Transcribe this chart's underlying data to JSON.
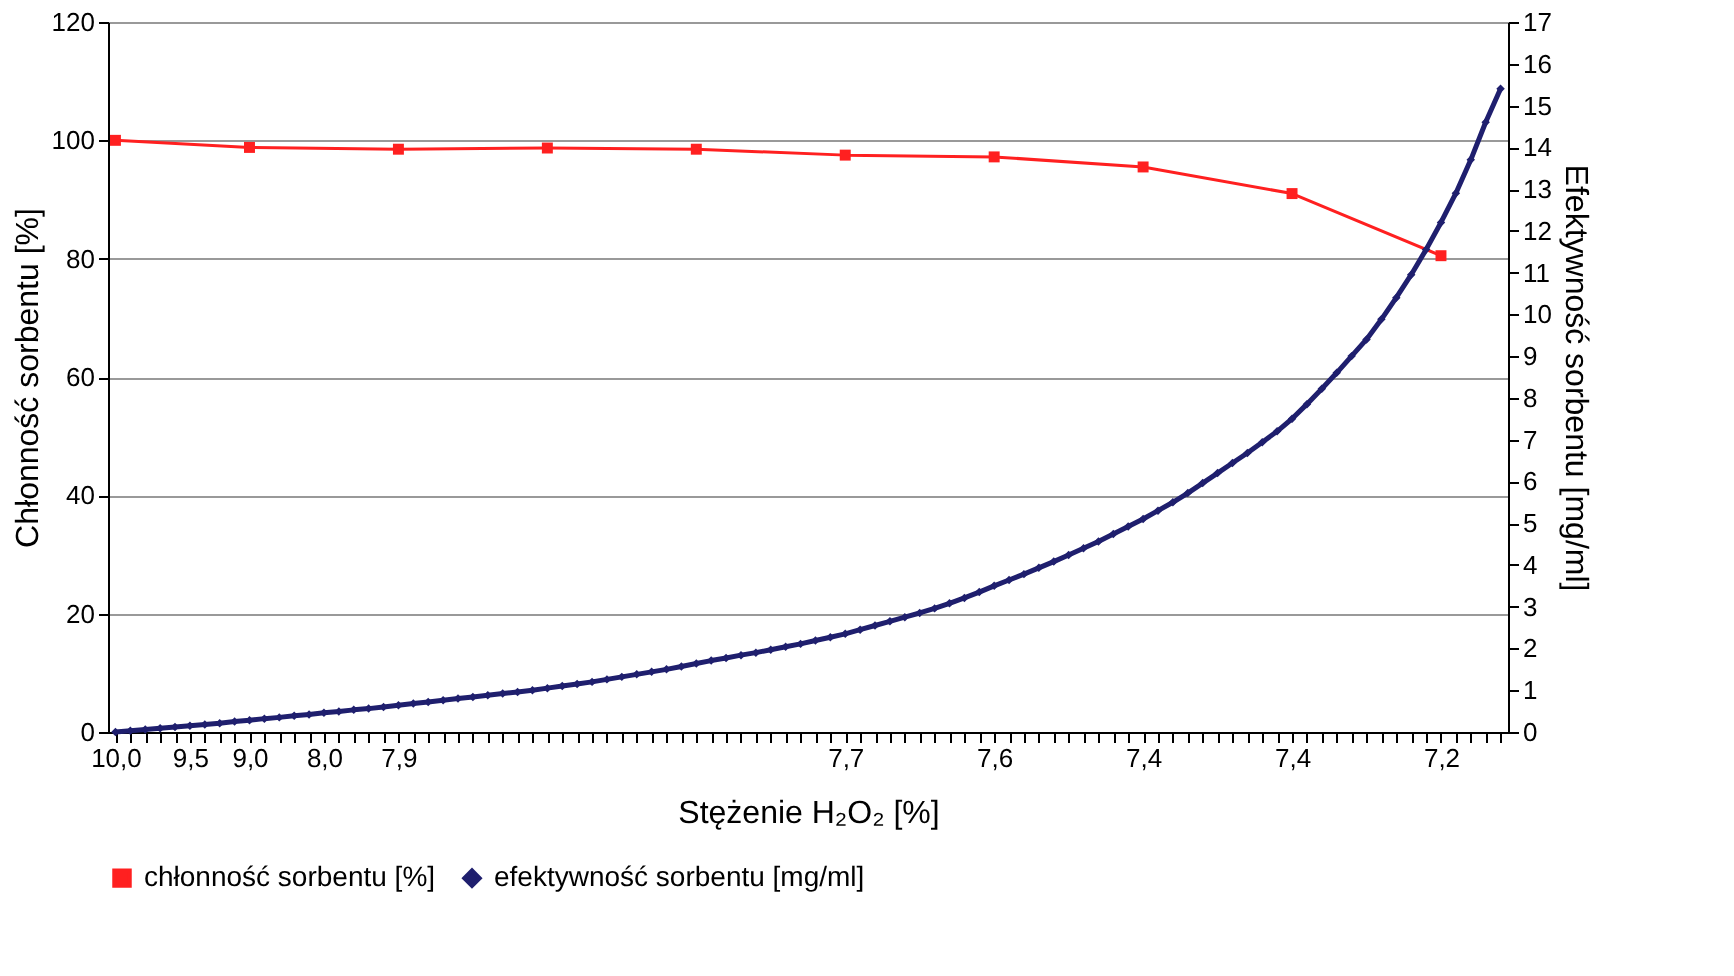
{
  "chart_data": {
    "type": "line",
    "xlabel": "Stężenie H₂O₂ [%]",
    "ylabel": "Chłonność sorbentu [%]",
    "y2label": "Efektywność sorbentu [mg/ml]",
    "categories": [
      "10,0",
      null,
      null,
      null,
      null,
      "9,5",
      null,
      null,
      null,
      "9,0",
      null,
      null,
      null,
      null,
      "8,0",
      null,
      null,
      null,
      null,
      "7,9",
      null,
      null,
      null,
      null,
      null,
      null,
      null,
      null,
      null,
      null,
      null,
      null,
      null,
      null,
      null,
      null,
      null,
      null,
      null,
      null,
      null,
      null,
      null,
      null,
      null,
      null,
      null,
      null,
      null,
      "7,7",
      null,
      null,
      null,
      null,
      null,
      null,
      null,
      null,
      null,
      "7,6",
      null,
      null,
      null,
      null,
      null,
      null,
      null,
      null,
      null,
      "7,4",
      null,
      null,
      null,
      null,
      null,
      null,
      null,
      null,
      null,
      "7,4",
      null,
      null,
      null,
      null,
      null,
      null,
      null,
      null,
      null,
      "7,2",
      null,
      null,
      null,
      null
    ],
    "series": [
      {
        "name": "chłonność sorbentu [%]",
        "color": "#ff2020",
        "marker": "square",
        "axis": "y",
        "values": [
          100,
          null,
          null,
          null,
          null,
          null,
          null,
          null,
          null,
          98.8,
          null,
          null,
          null,
          null,
          null,
          null,
          null,
          null,
          null,
          98.5,
          null,
          null,
          null,
          null,
          null,
          null,
          null,
          null,
          null,
          98.7,
          null,
          null,
          null,
          null,
          null,
          null,
          null,
          null,
          null,
          98.5,
          null,
          null,
          null,
          null,
          null,
          null,
          null,
          null,
          null,
          97.5,
          null,
          null,
          null,
          null,
          null,
          null,
          null,
          null,
          null,
          97.2,
          null,
          null,
          null,
          null,
          null,
          null,
          null,
          null,
          null,
          95.5,
          null,
          null,
          null,
          null,
          null,
          null,
          null,
          null,
          null,
          91.0,
          null,
          null,
          null,
          null,
          null,
          null,
          null,
          null,
          null,
          80.5,
          null,
          null,
          null,
          null
        ]
      },
      {
        "name": "efektywność sorbentu [mg/ml]",
        "color": "#1f1f6e",
        "marker": "diamond",
        "axis": "y2",
        "values": [
          0,
          0.03,
          0.06,
          0.09,
          0.12,
          0.15,
          0.18,
          0.21,
          0.25,
          0.28,
          0.32,
          0.35,
          0.39,
          0.42,
          0.46,
          0.49,
          0.53,
          0.56,
          0.6,
          0.64,
          0.68,
          0.72,
          0.76,
          0.8,
          0.84,
          0.88,
          0.92,
          0.96,
          1.0,
          1.05,
          1.1,
          1.15,
          1.2,
          1.26,
          1.32,
          1.38,
          1.44,
          1.5,
          1.57,
          1.64,
          1.71,
          1.77,
          1.84,
          1.9,
          1.97,
          2.04,
          2.11,
          2.19,
          2.27,
          2.35,
          2.45,
          2.55,
          2.65,
          2.75,
          2.85,
          2.96,
          3.08,
          3.21,
          3.35,
          3.5,
          3.64,
          3.78,
          3.93,
          4.08,
          4.24,
          4.4,
          4.56,
          4.74,
          4.92,
          5.1,
          5.3,
          5.5,
          5.72,
          5.96,
          6.2,
          6.44,
          6.68,
          6.94,
          7.2,
          7.5,
          7.85,
          8.22,
          8.6,
          9.0,
          9.4,
          9.88,
          10.4,
          10.95,
          11.55,
          12.2,
          12.9,
          13.7,
          14.6,
          15.4
        ]
      }
    ],
    "ylim": [
      0,
      120
    ],
    "yticks": [
      0,
      20,
      40,
      60,
      80,
      100,
      120
    ],
    "y2lim": [
      0,
      17
    ],
    "y2ticks": [
      0,
      1,
      2,
      3,
      4,
      5,
      6,
      7,
      8,
      9,
      10,
      11,
      12,
      13,
      14,
      15,
      16,
      17
    ],
    "grid": "y",
    "legend": "bottom",
    "line_style": "solid"
  }
}
